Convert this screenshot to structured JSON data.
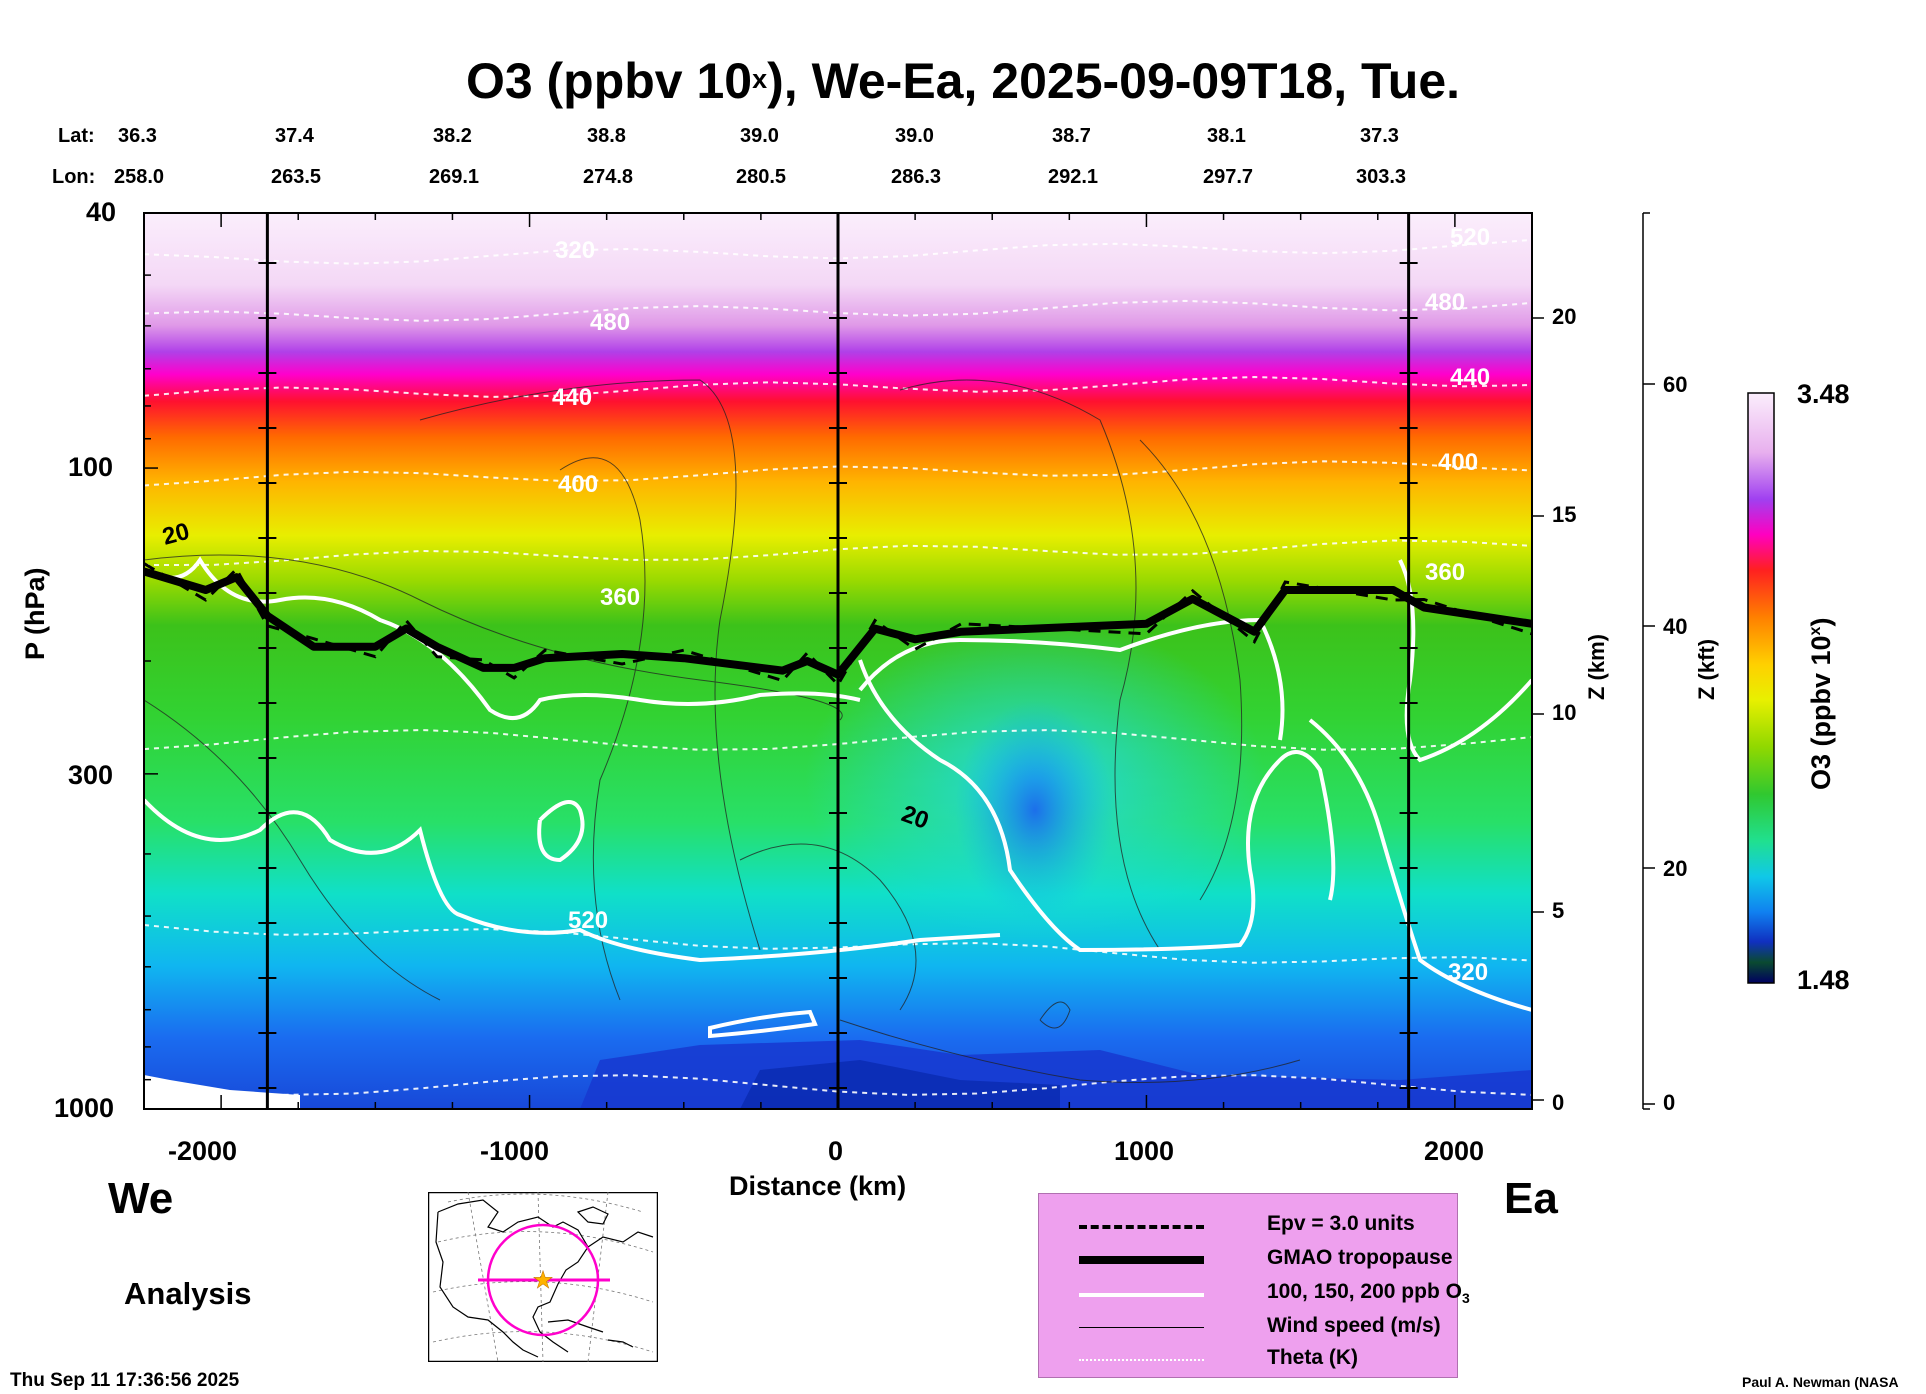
{
  "title": {
    "main": "O3 (ppbv 10",
    "sup": "x",
    "rest": "), We-Ea, 2025-09-09T18, Tue."
  },
  "header": {
    "lat_label": "Lat:",
    "lon_label": "Lon:",
    "lats": [
      "36.3",
      "37.4",
      "38.2",
      "38.8",
      "39.0",
      "39.0",
      "38.7",
      "38.1",
      "37.3"
    ],
    "lons": [
      "258.0",
      "263.5",
      "269.1",
      "274.8",
      "280.5",
      "286.3",
      "292.1",
      "297.7",
      "303.3"
    ]
  },
  "axes": {
    "ylabel": "P (hPa)",
    "xlabel": "Distance (km)",
    "zkm_label": "Z (km)",
    "zkft_label": "Z (kft)",
    "p_ticks": [
      "40",
      "100",
      "300",
      "1000"
    ],
    "x_ticks": [
      "-2000",
      "-1000",
      "0",
      "1000",
      "2000"
    ],
    "zkm_ticks": [
      "20",
      "15",
      "10",
      "5",
      "0"
    ],
    "zkft_ticks": [
      "60",
      "40",
      "20",
      "0"
    ]
  },
  "colorbar": {
    "max": "3.48",
    "min": "1.48",
    "label": "O3 (ppbv 10",
    "label_sup": "x",
    "label_end": ")"
  },
  "labels": {
    "west": "We",
    "east": "Ea",
    "analysis": "Analysis",
    "timestamp": "Thu Sep 11 17:36:56 2025",
    "credit": "Paul A. Newman (NASA"
  },
  "legend": {
    "items": [
      {
        "label": "Epv = 3.0 units"
      },
      {
        "label": "GMAO tropopause"
      },
      {
        "label": "100, 150, 200 ppb O"
      },
      {
        "label": "Wind speed (m/s)"
      },
      {
        "label": "Theta (K)"
      }
    ],
    "sub3": "3"
  },
  "contour_labels": {
    "theta_top": [
      "520",
      "480",
      "440",
      "400",
      "360",
      "320"
    ],
    "wind": "20",
    "theta_right": [
      "520",
      "480",
      "440",
      "400",
      "360",
      "320"
    ]
  },
  "chart_data": {
    "type": "heatmap",
    "title": "O3 (ppbv 10x), We-Ea, 2025-09-09T18, Tue.",
    "xlabel": "Distance (km)",
    "ylabel": "P (hPa)",
    "xlim": [
      -2250,
      2250
    ],
    "ylim": [
      1000,
      40
    ],
    "y_scale": "log",
    "colorbar_range": [
      1.48,
      3.48
    ],
    "tropopause": {
      "x": [
        -2250,
        -2050,
        -1950,
        -1850,
        -1700,
        -1500,
        -1400,
        -1300,
        -1150,
        -1050,
        -950,
        -700,
        -500,
        -180,
        -100,
        0,
        120,
        250,
        400,
        1000,
        1150,
        1350,
        1450,
        1800,
        1900,
        2250
      ],
      "p": [
        145,
        155,
        148,
        170,
        190,
        190,
        178,
        190,
        205,
        205,
        198,
        195,
        198,
        207,
        200,
        210,
        178,
        185,
        180,
        175,
        160,
        180,
        155,
        155,
        165,
        175
      ]
    },
    "theta_levels": [
      "320",
      "360",
      "400",
      "440",
      "480",
      "520"
    ],
    "wind_level": "20"
  }
}
